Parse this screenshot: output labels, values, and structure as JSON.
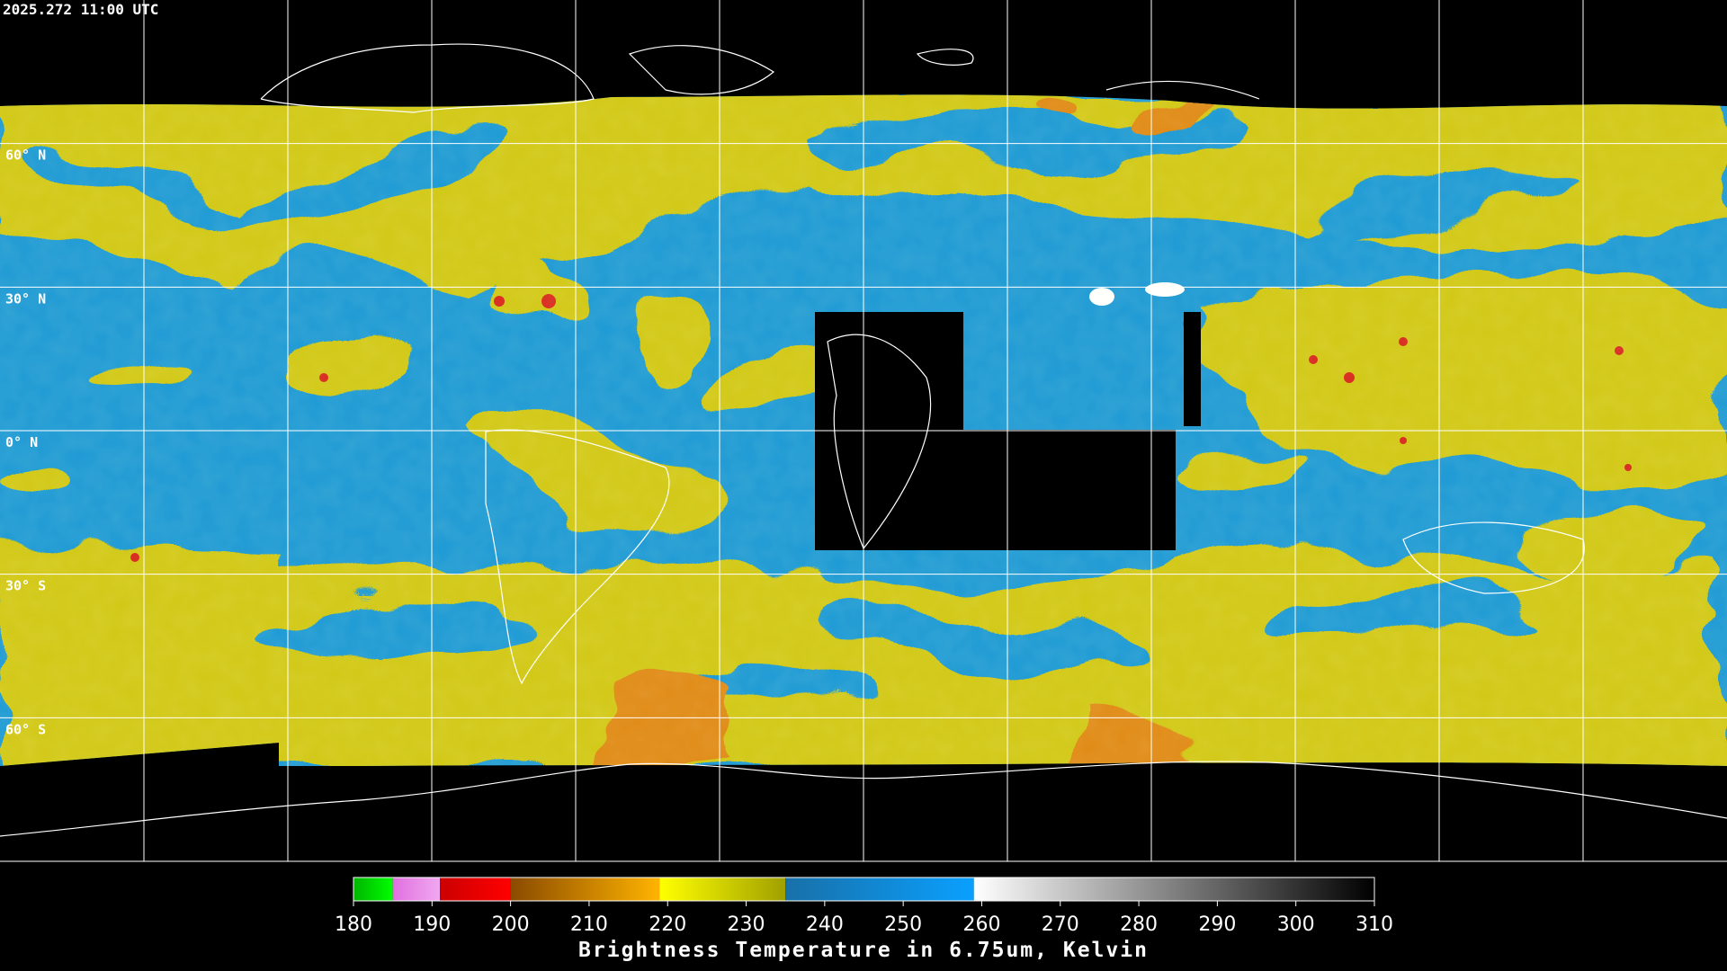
{
  "header": {
    "timestamp": "2025.272 11:00 UTC"
  },
  "map": {
    "latitude_labels": [
      "60° N",
      "30° N",
      "0° N",
      "30° S",
      "60° S"
    ]
  },
  "colorbar": {
    "title": "Brightness Temperature in 6.75um, Kelvin",
    "range": [
      180,
      310
    ],
    "ticks": [
      180,
      190,
      200,
      210,
      220,
      230,
      240,
      250,
      260,
      270,
      280,
      290,
      300,
      310
    ],
    "segments": [
      {
        "from": 180,
        "to": 185,
        "colors": [
          "#00b400",
          "#00ff00"
        ]
      },
      {
        "from": 185,
        "to": 191,
        "colors": [
          "#e070e0",
          "#f0a8f0"
        ]
      },
      {
        "from": 191,
        "to": 200,
        "colors": [
          "#cc0000",
          "#ff0000"
        ]
      },
      {
        "from": 200,
        "to": 219,
        "colors": [
          "#8a4a00",
          "#ffb400"
        ]
      },
      {
        "from": 219,
        "to": 235,
        "colors": [
          "#ffff00",
          "#a0a000"
        ]
      },
      {
        "from": 235,
        "to": 259,
        "colors": [
          "#1870a8",
          "#0aa0ff"
        ]
      },
      {
        "from": 259,
        "to": 310,
        "colors": [
          "#ffffff",
          "#000000"
        ]
      }
    ]
  }
}
